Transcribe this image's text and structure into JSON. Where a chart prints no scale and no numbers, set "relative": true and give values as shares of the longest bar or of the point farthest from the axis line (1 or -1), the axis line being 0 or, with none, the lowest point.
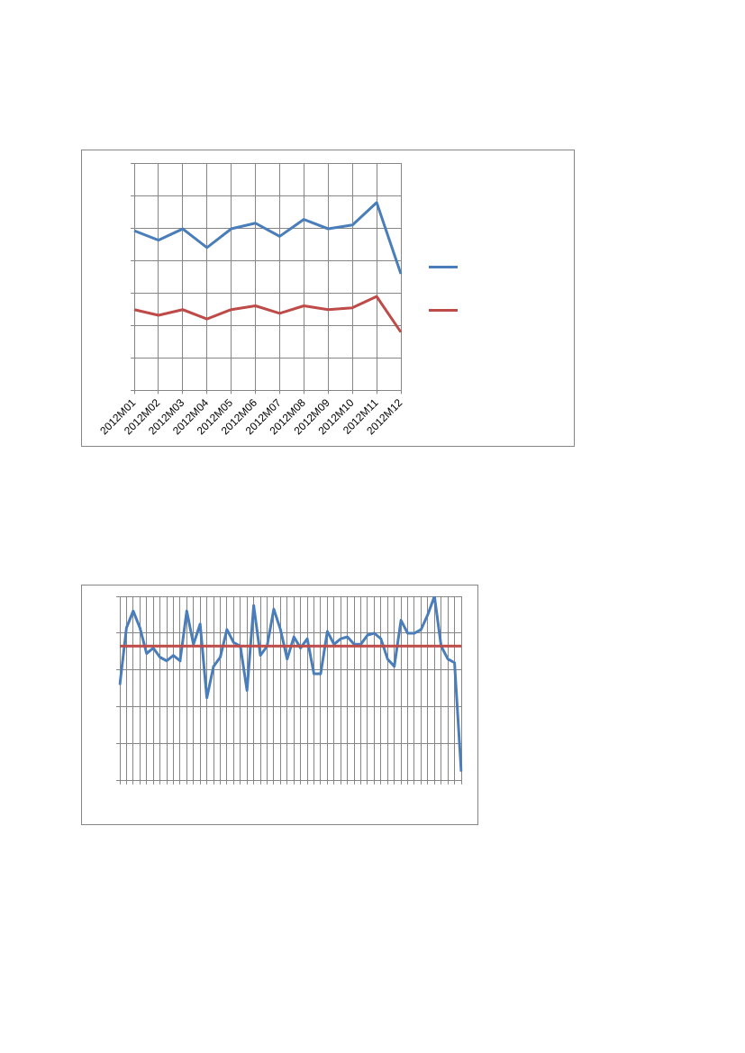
{
  "chart_data": [
    {
      "type": "line",
      "relative": true,
      "grid": true,
      "categories": [
        "2012M01",
        "2012M02",
        "2012M03",
        "2012M04",
        "2012M05",
        "2012M06",
        "2012M07",
        "2012M08",
        "2012M09",
        "2012M10",
        "2012M11",
        "2012M12"
      ],
      "series": [
        {
          "color": "#4a7ebb",
          "values": [
            0.85,
            0.8,
            0.86,
            0.76,
            0.86,
            0.89,
            0.82,
            0.91,
            0.86,
            0.88,
            1,
            0.62
          ]
        },
        {
          "color": "#be4b48",
          "values": [
            0.43,
            0.4,
            0.43,
            0.38,
            0.43,
            0.45,
            0.41,
            0.45,
            0.43,
            0.44,
            0.5,
            0.31
          ]
        }
      ]
    },
    {
      "type": "line",
      "relative": true,
      "grid": true,
      "categories": [
        null,
        null,
        null,
        null,
        null,
        null,
        null,
        null,
        null,
        null,
        null,
        null,
        null,
        null,
        null,
        null,
        null,
        null,
        null,
        null,
        null,
        null,
        null,
        null,
        null,
        null,
        null,
        null,
        null,
        null,
        null,
        null,
        null,
        null,
        null,
        null,
        null,
        null,
        null,
        null,
        null,
        null,
        null,
        null,
        null,
        null,
        null,
        null,
        null,
        null,
        null,
        null
      ],
      "series": [
        {
          "color": "#4a7ebb",
          "values": [
            0.52,
            0.83,
            0.92,
            0.83,
            0.69,
            0.72,
            0.67,
            0.65,
            0.68,
            0.65,
            0.92,
            0.74,
            0.85,
            0.45,
            0.62,
            0.67,
            0.82,
            0.75,
            0.73,
            0.49,
            0.95,
            0.68,
            0.73,
            0.93,
            0.82,
            0.66,
            0.78,
            0.72,
            0.77,
            0.58,
            0.58,
            0.81,
            0.74,
            0.77,
            0.78,
            0.74,
            0.74,
            0.79,
            0.8,
            0.77,
            0.66,
            0.62,
            0.87,
            0.8,
            0.8,
            0.82,
            0.9,
            1,
            0.73,
            0.66,
            0.64,
            0.05
          ]
        }
      ],
      "ref_lines": [
        {
          "axis": "y",
          "value": 0.73,
          "color": "#be4b48"
        }
      ]
    }
  ]
}
